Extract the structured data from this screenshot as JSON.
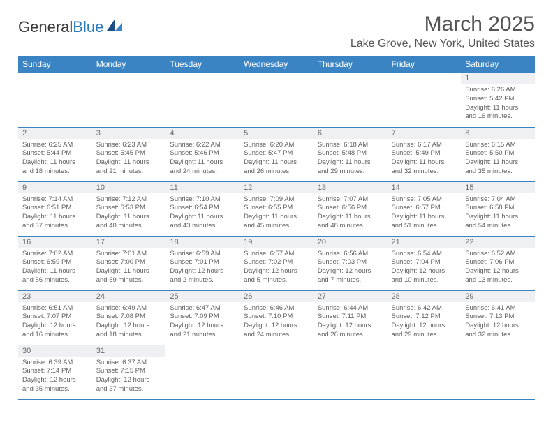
{
  "brand": {
    "part1": "General",
    "part2": "Blue"
  },
  "title": "March 2025",
  "location": "Lake Grove, New York, United States",
  "colors": {
    "header_bg": "#3b84c4",
    "header_text": "#ffffff",
    "daynum_bg": "#eef0f1",
    "text": "#555555",
    "cell_border": "#3b84c4"
  },
  "day_headers": [
    "Sunday",
    "Monday",
    "Tuesday",
    "Wednesday",
    "Thursday",
    "Friday",
    "Saturday"
  ],
  "weeks": [
    [
      null,
      null,
      null,
      null,
      null,
      null,
      {
        "n": "1",
        "sr": "Sunrise: 6:26 AM",
        "ss": "Sunset: 5:42 PM",
        "dl": "Daylight: 11 hours and 16 minutes."
      }
    ],
    [
      {
        "n": "2",
        "sr": "Sunrise: 6:25 AM",
        "ss": "Sunset: 5:44 PM",
        "dl": "Daylight: 11 hours and 18 minutes."
      },
      {
        "n": "3",
        "sr": "Sunrise: 6:23 AM",
        "ss": "Sunset: 5:45 PM",
        "dl": "Daylight: 11 hours and 21 minutes."
      },
      {
        "n": "4",
        "sr": "Sunrise: 6:22 AM",
        "ss": "Sunset: 5:46 PM",
        "dl": "Daylight: 11 hours and 24 minutes."
      },
      {
        "n": "5",
        "sr": "Sunrise: 6:20 AM",
        "ss": "Sunset: 5:47 PM",
        "dl": "Daylight: 11 hours and 26 minutes."
      },
      {
        "n": "6",
        "sr": "Sunrise: 6:18 AM",
        "ss": "Sunset: 5:48 PM",
        "dl": "Daylight: 11 hours and 29 minutes."
      },
      {
        "n": "7",
        "sr": "Sunrise: 6:17 AM",
        "ss": "Sunset: 5:49 PM",
        "dl": "Daylight: 11 hours and 32 minutes."
      },
      {
        "n": "8",
        "sr": "Sunrise: 6:15 AM",
        "ss": "Sunset: 5:50 PM",
        "dl": "Daylight: 11 hours and 35 minutes."
      }
    ],
    [
      {
        "n": "9",
        "sr": "Sunrise: 7:14 AM",
        "ss": "Sunset: 6:51 PM",
        "dl": "Daylight: 11 hours and 37 minutes."
      },
      {
        "n": "10",
        "sr": "Sunrise: 7:12 AM",
        "ss": "Sunset: 6:53 PM",
        "dl": "Daylight: 11 hours and 40 minutes."
      },
      {
        "n": "11",
        "sr": "Sunrise: 7:10 AM",
        "ss": "Sunset: 6:54 PM",
        "dl": "Daylight: 11 hours and 43 minutes."
      },
      {
        "n": "12",
        "sr": "Sunrise: 7:09 AM",
        "ss": "Sunset: 6:55 PM",
        "dl": "Daylight: 11 hours and 45 minutes."
      },
      {
        "n": "13",
        "sr": "Sunrise: 7:07 AM",
        "ss": "Sunset: 6:56 PM",
        "dl": "Daylight: 11 hours and 48 minutes."
      },
      {
        "n": "14",
        "sr": "Sunrise: 7:05 AM",
        "ss": "Sunset: 6:57 PM",
        "dl": "Daylight: 11 hours and 51 minutes."
      },
      {
        "n": "15",
        "sr": "Sunrise: 7:04 AM",
        "ss": "Sunset: 6:58 PM",
        "dl": "Daylight: 11 hours and 54 minutes."
      }
    ],
    [
      {
        "n": "16",
        "sr": "Sunrise: 7:02 AM",
        "ss": "Sunset: 6:59 PM",
        "dl": "Daylight: 11 hours and 56 minutes."
      },
      {
        "n": "17",
        "sr": "Sunrise: 7:01 AM",
        "ss": "Sunset: 7:00 PM",
        "dl": "Daylight: 11 hours and 59 minutes."
      },
      {
        "n": "18",
        "sr": "Sunrise: 6:59 AM",
        "ss": "Sunset: 7:01 PM",
        "dl": "Daylight: 12 hours and 2 minutes."
      },
      {
        "n": "19",
        "sr": "Sunrise: 6:57 AM",
        "ss": "Sunset: 7:02 PM",
        "dl": "Daylight: 12 hours and 5 minutes."
      },
      {
        "n": "20",
        "sr": "Sunrise: 6:56 AM",
        "ss": "Sunset: 7:03 PM",
        "dl": "Daylight: 12 hours and 7 minutes."
      },
      {
        "n": "21",
        "sr": "Sunrise: 6:54 AM",
        "ss": "Sunset: 7:04 PM",
        "dl": "Daylight: 12 hours and 10 minutes."
      },
      {
        "n": "22",
        "sr": "Sunrise: 6:52 AM",
        "ss": "Sunset: 7:06 PM",
        "dl": "Daylight: 12 hours and 13 minutes."
      }
    ],
    [
      {
        "n": "23",
        "sr": "Sunrise: 6:51 AM",
        "ss": "Sunset: 7:07 PM",
        "dl": "Daylight: 12 hours and 16 minutes."
      },
      {
        "n": "24",
        "sr": "Sunrise: 6:49 AM",
        "ss": "Sunset: 7:08 PM",
        "dl": "Daylight: 12 hours and 18 minutes."
      },
      {
        "n": "25",
        "sr": "Sunrise: 6:47 AM",
        "ss": "Sunset: 7:09 PM",
        "dl": "Daylight: 12 hours and 21 minutes."
      },
      {
        "n": "26",
        "sr": "Sunrise: 6:46 AM",
        "ss": "Sunset: 7:10 PM",
        "dl": "Daylight: 12 hours and 24 minutes."
      },
      {
        "n": "27",
        "sr": "Sunrise: 6:44 AM",
        "ss": "Sunset: 7:11 PM",
        "dl": "Daylight: 12 hours and 26 minutes."
      },
      {
        "n": "28",
        "sr": "Sunrise: 6:42 AM",
        "ss": "Sunset: 7:12 PM",
        "dl": "Daylight: 12 hours and 29 minutes."
      },
      {
        "n": "29",
        "sr": "Sunrise: 6:41 AM",
        "ss": "Sunset: 7:13 PM",
        "dl": "Daylight: 12 hours and 32 minutes."
      }
    ],
    [
      {
        "n": "30",
        "sr": "Sunrise: 6:39 AM",
        "ss": "Sunset: 7:14 PM",
        "dl": "Daylight: 12 hours and 35 minutes."
      },
      {
        "n": "31",
        "sr": "Sunrise: 6:37 AM",
        "ss": "Sunset: 7:15 PM",
        "dl": "Daylight: 12 hours and 37 minutes."
      },
      null,
      null,
      null,
      null,
      null
    ]
  ]
}
